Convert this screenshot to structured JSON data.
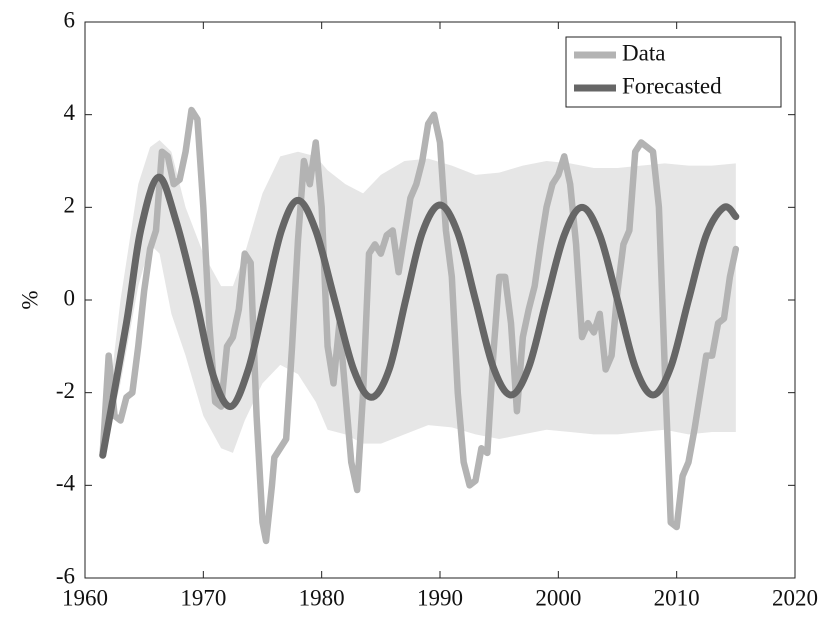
{
  "chart_data": {
    "type": "line",
    "ylabel": "%",
    "xlim": [
      1960,
      2020
    ],
    "ylim": [
      -6,
      6
    ],
    "xticks": [
      1960,
      1970,
      1980,
      1990,
      2000,
      2010,
      2020
    ],
    "yticks": [
      -6,
      -4,
      -2,
      0,
      2,
      4,
      6
    ],
    "legend": "upper right",
    "band": {
      "color": "#e6e6e6",
      "x": [
        1961.5,
        1963,
        1964.5,
        1965.5,
        1966.3,
        1967.3,
        1968.5,
        1970,
        1971.5,
        1972.5,
        1973.5,
        1975,
        1976.5,
        1978,
        1979.5,
        1980.5,
        1982,
        1983.5,
        1985,
        1987,
        1989,
        1991,
        1993,
        1995,
        1997,
        1999,
        2001,
        2003,
        2005,
        2007,
        2009,
        2011,
        2013,
        2015
      ],
      "upper": [
        -3.3,
        0,
        2.5,
        3.3,
        3.45,
        3.2,
        2.0,
        1.0,
        0.3,
        0.3,
        1.0,
        2.3,
        3.1,
        3.2,
        3.1,
        2.8,
        2.5,
        2.3,
        2.7,
        3.0,
        3.05,
        2.9,
        2.7,
        2.75,
        2.9,
        3.0,
        2.95,
        2.85,
        2.85,
        2.9,
        2.95,
        2.9,
        2.9,
        2.95
      ],
      "lower": [
        -3.4,
        -1.8,
        0.3,
        1.2,
        1.0,
        -0.3,
        -1.2,
        -2.5,
        -3.2,
        -3.3,
        -2.6,
        -1.8,
        -1.4,
        -1.6,
        -2.2,
        -2.8,
        -2.9,
        -3.1,
        -3.1,
        -2.9,
        -2.7,
        -2.75,
        -2.9,
        -3.0,
        -2.9,
        -2.8,
        -2.85,
        -2.9,
        -2.9,
        -2.85,
        -2.8,
        -2.9,
        -2.85,
        -2.85
      ]
    },
    "series": [
      {
        "name": "Data",
        "color": "#b3b3b3",
        "smooth": false,
        "x": [
          1961.5,
          1962,
          1962.5,
          1963,
          1963.5,
          1964,
          1964.5,
          1965,
          1965.5,
          1966,
          1966.5,
          1967,
          1967.5,
          1968,
          1968.5,
          1969,
          1969.5,
          1970,
          1970.5,
          1971,
          1971.5,
          1972,
          1972.5,
          1973,
          1973.5,
          1974,
          1974.5,
          1975,
          1975.3,
          1975.8,
          1976,
          1977,
          1977.5,
          1978,
          1978.5,
          1979,
          1979.5,
          1980,
          1980.5,
          1981,
          1981.5,
          1982,
          1982.5,
          1983,
          1983.5,
          1984,
          1984.5,
          1985,
          1985.5,
          1986,
          1986.5,
          1987,
          1987.5,
          1988,
          1988.5,
          1989,
          1989.5,
          1990,
          1990.5,
          1991,
          1991.5,
          1992,
          1992.5,
          1993,
          1993.5,
          1994,
          1994.5,
          1995,
          1995.5,
          1996,
          1996.5,
          1997,
          1997.5,
          1998,
          1998.5,
          1999,
          1999.5,
          2000,
          2000.5,
          2001,
          2001.5,
          2002,
          2002.5,
          2003,
          2003.5,
          2004,
          2004.5,
          2005,
          2005.5,
          2006,
          2006.5,
          2007,
          2007.5,
          2008,
          2008.5,
          2009,
          2009.5,
          2010,
          2010.5,
          2011,
          2011.5,
          2012,
          2012.5,
          2013,
          2013.5,
          2014,
          2014.5,
          2015
        ],
        "values": [
          -3.3,
          -1.2,
          -2.5,
          -2.6,
          -2.1,
          -2.0,
          -1.0,
          0.2,
          1.1,
          1.5,
          3.2,
          3.1,
          2.5,
          2.6,
          3.2,
          4.1,
          3.9,
          2.0,
          -0.5,
          -2.2,
          -2.3,
          -1.0,
          -0.8,
          -0.2,
          1.0,
          0.8,
          -2.5,
          -4.8,
          -5.2,
          -4.0,
          -3.4,
          -3.0,
          -1.0,
          1.3,
          3.0,
          2.5,
          3.4,
          2.0,
          -1.0,
          -1.8,
          -0.5,
          -2.0,
          -3.5,
          -4.1,
          -2.0,
          1.0,
          1.2,
          1.0,
          1.4,
          1.5,
          0.6,
          1.4,
          2.2,
          2.5,
          3.0,
          3.8,
          4.0,
          3.4,
          1.5,
          0.5,
          -2.0,
          -3.5,
          -4.0,
          -3.9,
          -3.2,
          -3.3,
          -1.2,
          0.5,
          0.5,
          -0.5,
          -2.4,
          -0.8,
          -0.2,
          0.3,
          1.2,
          2.0,
          2.5,
          2.7,
          3.1,
          2.5,
          1.2,
          -0.8,
          -0.5,
          -0.7,
          -0.3,
          -1.5,
          -1.2,
          0.2,
          1.2,
          1.5,
          3.2,
          3.4,
          3.3,
          3.2,
          2.0,
          -1.5,
          -4.8,
          -4.9,
          -3.8,
          -3.5,
          -2.8,
          -2.0,
          -1.2,
          -1.2,
          -0.5,
          -0.4,
          0.5,
          1.1
        ]
      },
      {
        "name": "Forecasted",
        "color": "#666666",
        "smooth": true,
        "x": [
          1961.5,
          1963.5,
          1964.7,
          1966.2,
          1967.7,
          1969.3,
          1970.8,
          1972.3,
          1973.8,
          1975.2,
          1976.6,
          1978,
          1979.5,
          1981.1,
          1982.7,
          1984.2,
          1985.7,
          1987.1,
          1988.5,
          1990,
          1991.5,
          1993,
          1994.5,
          1996,
          1997.5,
          1999,
          2000.5,
          2002,
          2003.5,
          2005,
          2006.5,
          2008,
          2009.5,
          2011,
          2012.5,
          2014,
          2015
        ],
        "values": [
          -3.35,
          -0.5,
          1.5,
          2.65,
          1.7,
          0.1,
          -1.6,
          -2.3,
          -1.5,
          0,
          1.5,
          2.15,
          1.5,
          0,
          -1.5,
          -2.1,
          -1.5,
          0,
          1.45,
          2.05,
          1.45,
          0,
          -1.45,
          -2.05,
          -1.45,
          0,
          1.4,
          2.0,
          1.4,
          0,
          -1.45,
          -2.05,
          -1.45,
          0,
          1.4,
          2.0,
          1.8
        ]
      }
    ]
  }
}
